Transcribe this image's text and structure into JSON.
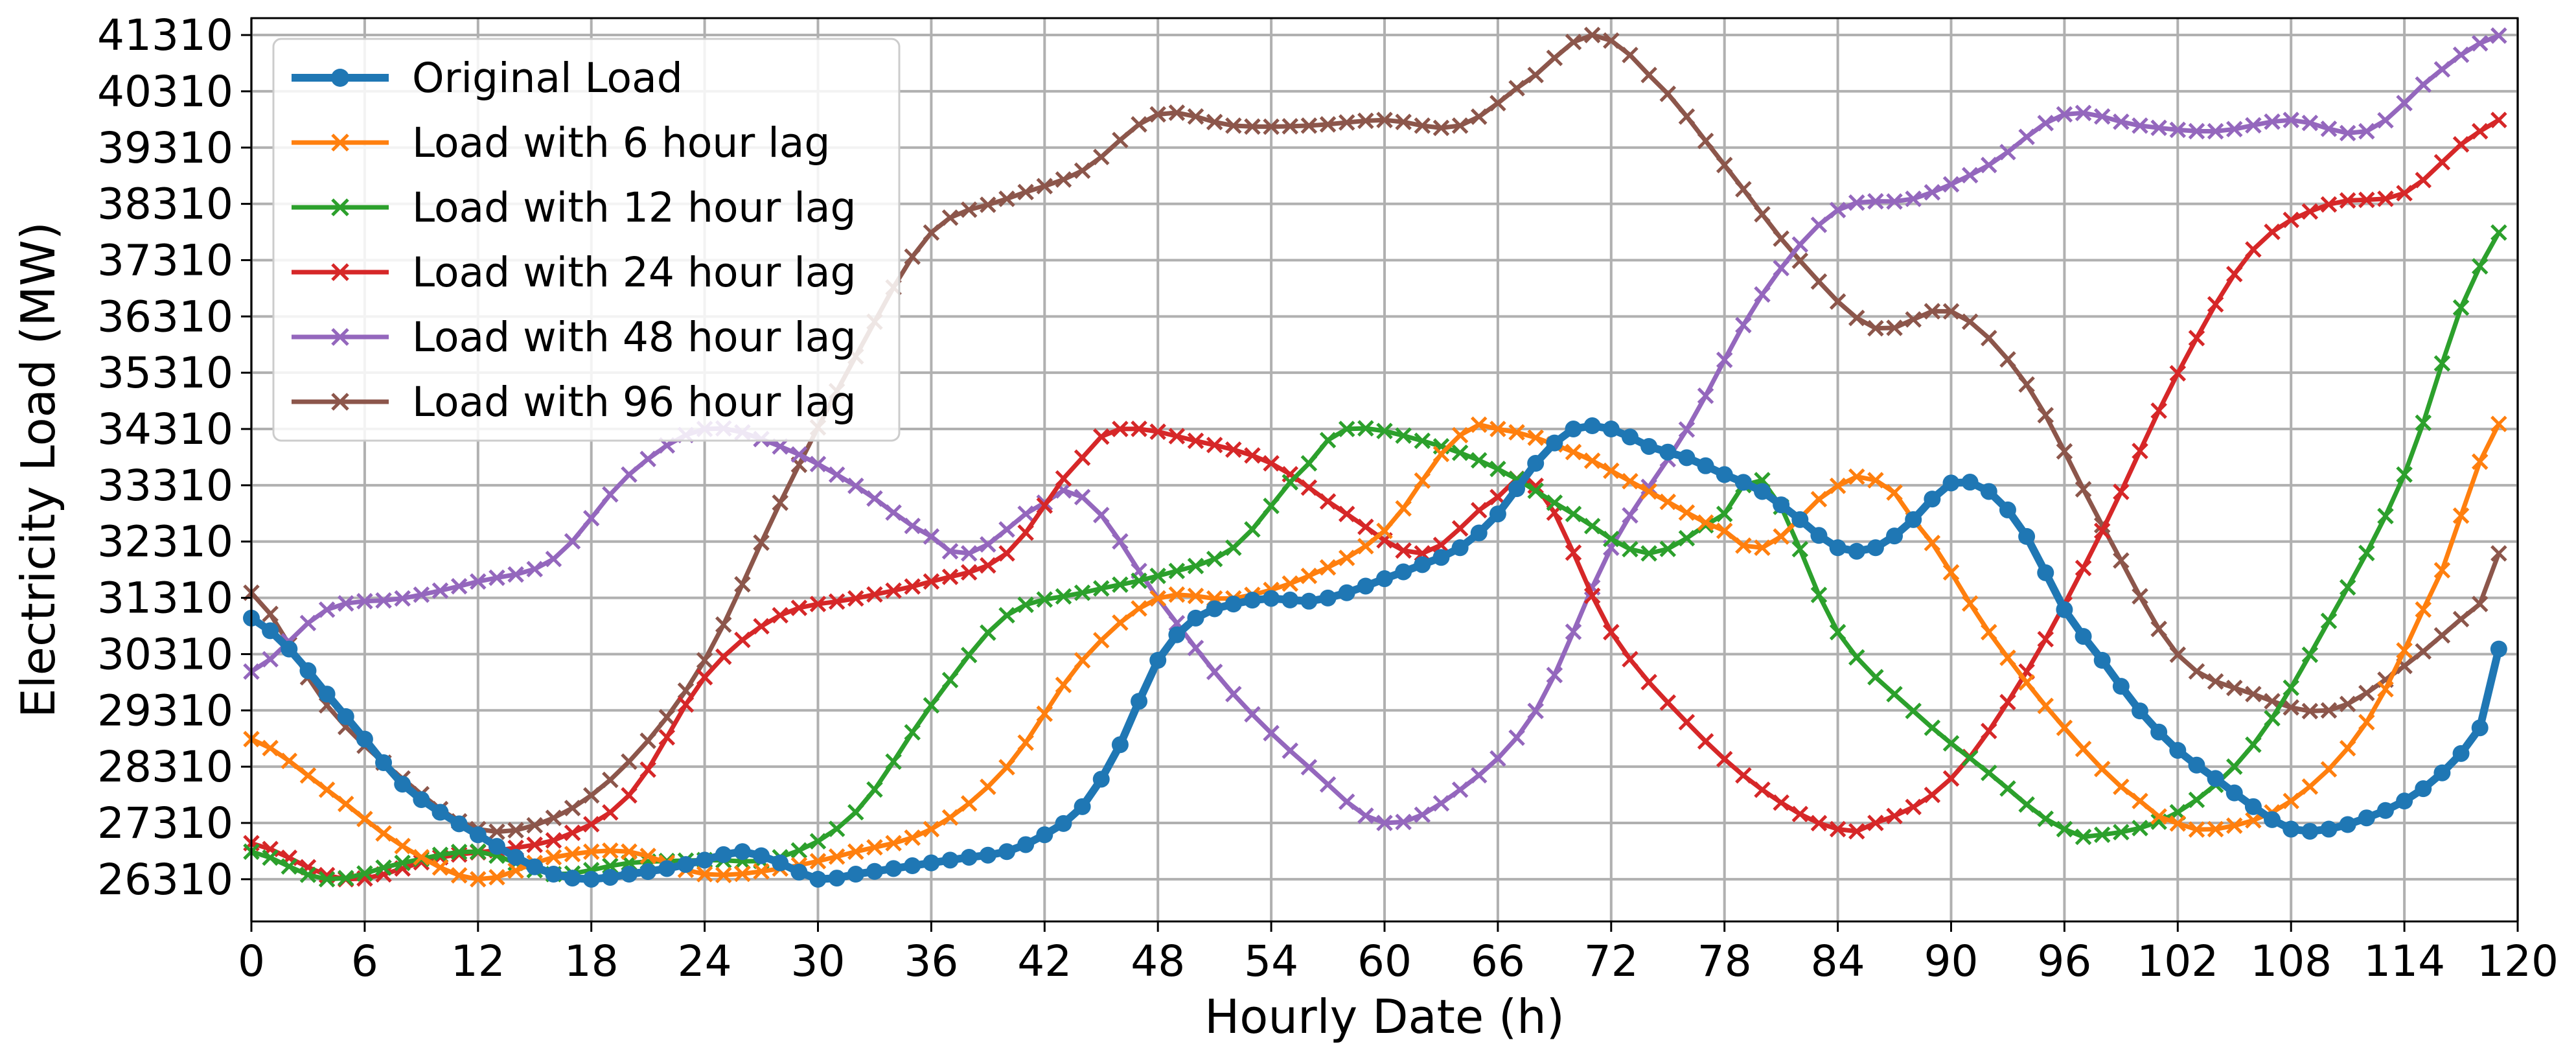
{
  "chart_data": {
    "type": "line",
    "title": "",
    "xlabel": "Hourly Date (h)",
    "ylabel": "Electricity Load (MW)",
    "xlim": [
      0,
      120
    ],
    "ylim": [
      25560,
      41610
    ],
    "xticks": [
      0,
      6,
      12,
      18,
      24,
      30,
      36,
      42,
      48,
      54,
      60,
      66,
      72,
      78,
      84,
      90,
      96,
      102,
      108,
      114,
      120
    ],
    "yticks": [
      26310,
      27310,
      28310,
      29310,
      30310,
      31310,
      32310,
      33310,
      34310,
      35310,
      36310,
      37310,
      38310,
      39310,
      40310,
      41310
    ],
    "grid": true,
    "legend_position": "top-left",
    "series": [
      {
        "name": "Original Load",
        "color": "#1f77b4",
        "marker": "circle",
        "line_width": "thick",
        "points": [
          [
            0,
            30950
          ],
          [
            2,
            30400
          ],
          [
            4,
            29600
          ],
          [
            6,
            28800
          ],
          [
            8,
            28000
          ],
          [
            10,
            27500
          ],
          [
            12,
            27100
          ],
          [
            14,
            26700
          ],
          [
            16,
            26400
          ],
          [
            18,
            26310
          ],
          [
            20,
            26400
          ],
          [
            22,
            26500
          ],
          [
            24,
            26650
          ],
          [
            26,
            26800
          ],
          [
            28,
            26600
          ],
          [
            30,
            26310
          ],
          [
            32,
            26400
          ],
          [
            34,
            26500
          ],
          [
            36,
            26600
          ],
          [
            38,
            26700
          ],
          [
            40,
            26800
          ],
          [
            42,
            27100
          ],
          [
            44,
            27600
          ],
          [
            46,
            28700
          ],
          [
            48,
            30200
          ],
          [
            50,
            30950
          ],
          [
            52,
            31200
          ],
          [
            54,
            31300
          ],
          [
            56,
            31250
          ],
          [
            58,
            31400
          ],
          [
            60,
            31650
          ],
          [
            62,
            31900
          ],
          [
            64,
            32200
          ],
          [
            66,
            32800
          ],
          [
            68,
            33700
          ],
          [
            70,
            34310
          ],
          [
            72,
            34310
          ],
          [
            74,
            34000
          ],
          [
            76,
            33800
          ],
          [
            78,
            33500
          ],
          [
            80,
            33200
          ],
          [
            82,
            32700
          ],
          [
            84,
            32200
          ],
          [
            86,
            32200
          ],
          [
            88,
            32700
          ],
          [
            90,
            33350
          ],
          [
            92,
            33200
          ],
          [
            94,
            32400
          ],
          [
            96,
            31100
          ],
          [
            98,
            30200
          ],
          [
            100,
            29300
          ],
          [
            102,
            28600
          ],
          [
            104,
            28100
          ],
          [
            106,
            27600
          ],
          [
            108,
            27200
          ],
          [
            110,
            27200
          ],
          [
            112,
            27400
          ],
          [
            114,
            27700
          ],
          [
            116,
            28200
          ],
          [
            118,
            29000
          ],
          [
            119,
            30400
          ]
        ]
      },
      {
        "name": "Load with 6 hour lag",
        "color": "#ff7f0e",
        "marker": "x",
        "points": [
          [
            0,
            28800
          ],
          [
            4,
            27900
          ],
          [
            8,
            26900
          ],
          [
            12,
            26310
          ],
          [
            16,
            26700
          ],
          [
            20,
            26800
          ],
          [
            24,
            26400
          ],
          [
            28,
            26500
          ],
          [
            32,
            26800
          ],
          [
            36,
            27200
          ],
          [
            40,
            28300
          ],
          [
            44,
            30200
          ],
          [
            48,
            31300
          ],
          [
            52,
            31300
          ],
          [
            56,
            31700
          ],
          [
            60,
            32500
          ],
          [
            64,
            34200
          ],
          [
            66,
            34310
          ],
          [
            70,
            33900
          ],
          [
            74,
            33200
          ],
          [
            78,
            32500
          ],
          [
            80,
            32200
          ],
          [
            84,
            33300
          ],
          [
            86,
            33400
          ],
          [
            88,
            32700
          ],
          [
            92,
            30700
          ],
          [
            96,
            29000
          ],
          [
            100,
            27700
          ],
          [
            102,
            27300
          ],
          [
            104,
            27200
          ],
          [
            108,
            27700
          ],
          [
            112,
            29100
          ],
          [
            116,
            31800
          ],
          [
            119,
            34400
          ]
        ]
      },
      {
        "name": "Load with 12 hour lag",
        "color": "#2ca02c",
        "marker": "x",
        "points": [
          [
            0,
            26800
          ],
          [
            4,
            26310
          ],
          [
            8,
            26600
          ],
          [
            12,
            26800
          ],
          [
            16,
            26400
          ],
          [
            20,
            26600
          ],
          [
            24,
            26650
          ],
          [
            28,
            26700
          ],
          [
            32,
            27500
          ],
          [
            36,
            29400
          ],
          [
            40,
            31000
          ],
          [
            44,
            31400
          ],
          [
            48,
            31700
          ],
          [
            52,
            32200
          ],
          [
            56,
            33700
          ],
          [
            58,
            34310
          ],
          [
            62,
            34100
          ],
          [
            66,
            33600
          ],
          [
            70,
            32800
          ],
          [
            74,
            32100
          ],
          [
            78,
            32800
          ],
          [
            80,
            33400
          ],
          [
            84,
            30700
          ],
          [
            88,
            29300
          ],
          [
            92,
            28200
          ],
          [
            96,
            27200
          ],
          [
            98,
            27100
          ],
          [
            102,
            27500
          ],
          [
            106,
            28700
          ],
          [
            110,
            30900
          ],
          [
            114,
            33500
          ],
          [
            118,
            37200
          ],
          [
            119,
            37800
          ]
        ]
      },
      {
        "name": "Load with 24 hour lag",
        "color": "#d62728",
        "marker": "x",
        "points": [
          [
            0,
            26950
          ],
          [
            5,
            26310
          ],
          [
            10,
            26700
          ],
          [
            16,
            27000
          ],
          [
            20,
            27800
          ],
          [
            24,
            29900
          ],
          [
            28,
            31000
          ],
          [
            32,
            31300
          ],
          [
            36,
            31600
          ],
          [
            40,
            32100
          ],
          [
            44,
            33800
          ],
          [
            46,
            34310
          ],
          [
            50,
            34100
          ],
          [
            54,
            33700
          ],
          [
            58,
            32800
          ],
          [
            62,
            32100
          ],
          [
            66,
            33100
          ],
          [
            68,
            33300
          ],
          [
            72,
            30700
          ],
          [
            76,
            29100
          ],
          [
            80,
            27900
          ],
          [
            84,
            27200
          ],
          [
            86,
            27310
          ],
          [
            90,
            28100
          ],
          [
            94,
            30000
          ],
          [
            98,
            32500
          ],
          [
            102,
            35300
          ],
          [
            106,
            37500
          ],
          [
            110,
            38300
          ],
          [
            114,
            38500
          ],
          [
            118,
            39600
          ],
          [
            119,
            39800
          ]
        ]
      },
      {
        "name": "Load with 48 hour lag",
        "color": "#9467bd",
        "marker": "x",
        "points": [
          [
            0,
            30000
          ],
          [
            4,
            31100
          ],
          [
            8,
            31300
          ],
          [
            12,
            31600
          ],
          [
            16,
            32000
          ],
          [
            20,
            33500
          ],
          [
            24,
            34310
          ],
          [
            28,
            34000
          ],
          [
            32,
            33300
          ],
          [
            36,
            32400
          ],
          [
            38,
            32100
          ],
          [
            42,
            33000
          ],
          [
            44,
            33100
          ],
          [
            48,
            31300
          ],
          [
            52,
            29600
          ],
          [
            56,
            28300
          ],
          [
            60,
            27310
          ],
          [
            64,
            27900
          ],
          [
            68,
            29300
          ],
          [
            72,
            32200
          ],
          [
            76,
            34300
          ],
          [
            80,
            36700
          ],
          [
            84,
            38200
          ],
          [
            88,
            38400
          ],
          [
            92,
            39000
          ],
          [
            96,
            39900
          ],
          [
            100,
            39700
          ],
          [
            104,
            39600
          ],
          [
            108,
            39800
          ],
          [
            112,
            39600
          ],
          [
            116,
            40700
          ],
          [
            119,
            41300
          ]
        ]
      },
      {
        "name": "Load with 96 hour lag",
        "color": "#8c564b",
        "marker": "x",
        "points": [
          [
            0,
            31400
          ],
          [
            4,
            29400
          ],
          [
            8,
            28100
          ],
          [
            12,
            27200
          ],
          [
            16,
            27400
          ],
          [
            20,
            28400
          ],
          [
            24,
            30200
          ],
          [
            28,
            33000
          ],
          [
            32,
            35600
          ],
          [
            36,
            37800
          ],
          [
            40,
            38400
          ],
          [
            44,
            38900
          ],
          [
            48,
            39900
          ],
          [
            52,
            39700
          ],
          [
            56,
            39700
          ],
          [
            60,
            39800
          ],
          [
            64,
            39700
          ],
          [
            68,
            40600
          ],
          [
            71,
            41310
          ],
          [
            74,
            40600
          ],
          [
            78,
            39000
          ],
          [
            82,
            37300
          ],
          [
            86,
            36100
          ],
          [
            90,
            36400
          ],
          [
            94,
            35100
          ],
          [
            98,
            32600
          ],
          [
            102,
            30300
          ],
          [
            106,
            29600
          ],
          [
            110,
            29310
          ],
          [
            114,
            30100
          ],
          [
            118,
            31200
          ],
          [
            119,
            32100
          ]
        ]
      }
    ]
  }
}
